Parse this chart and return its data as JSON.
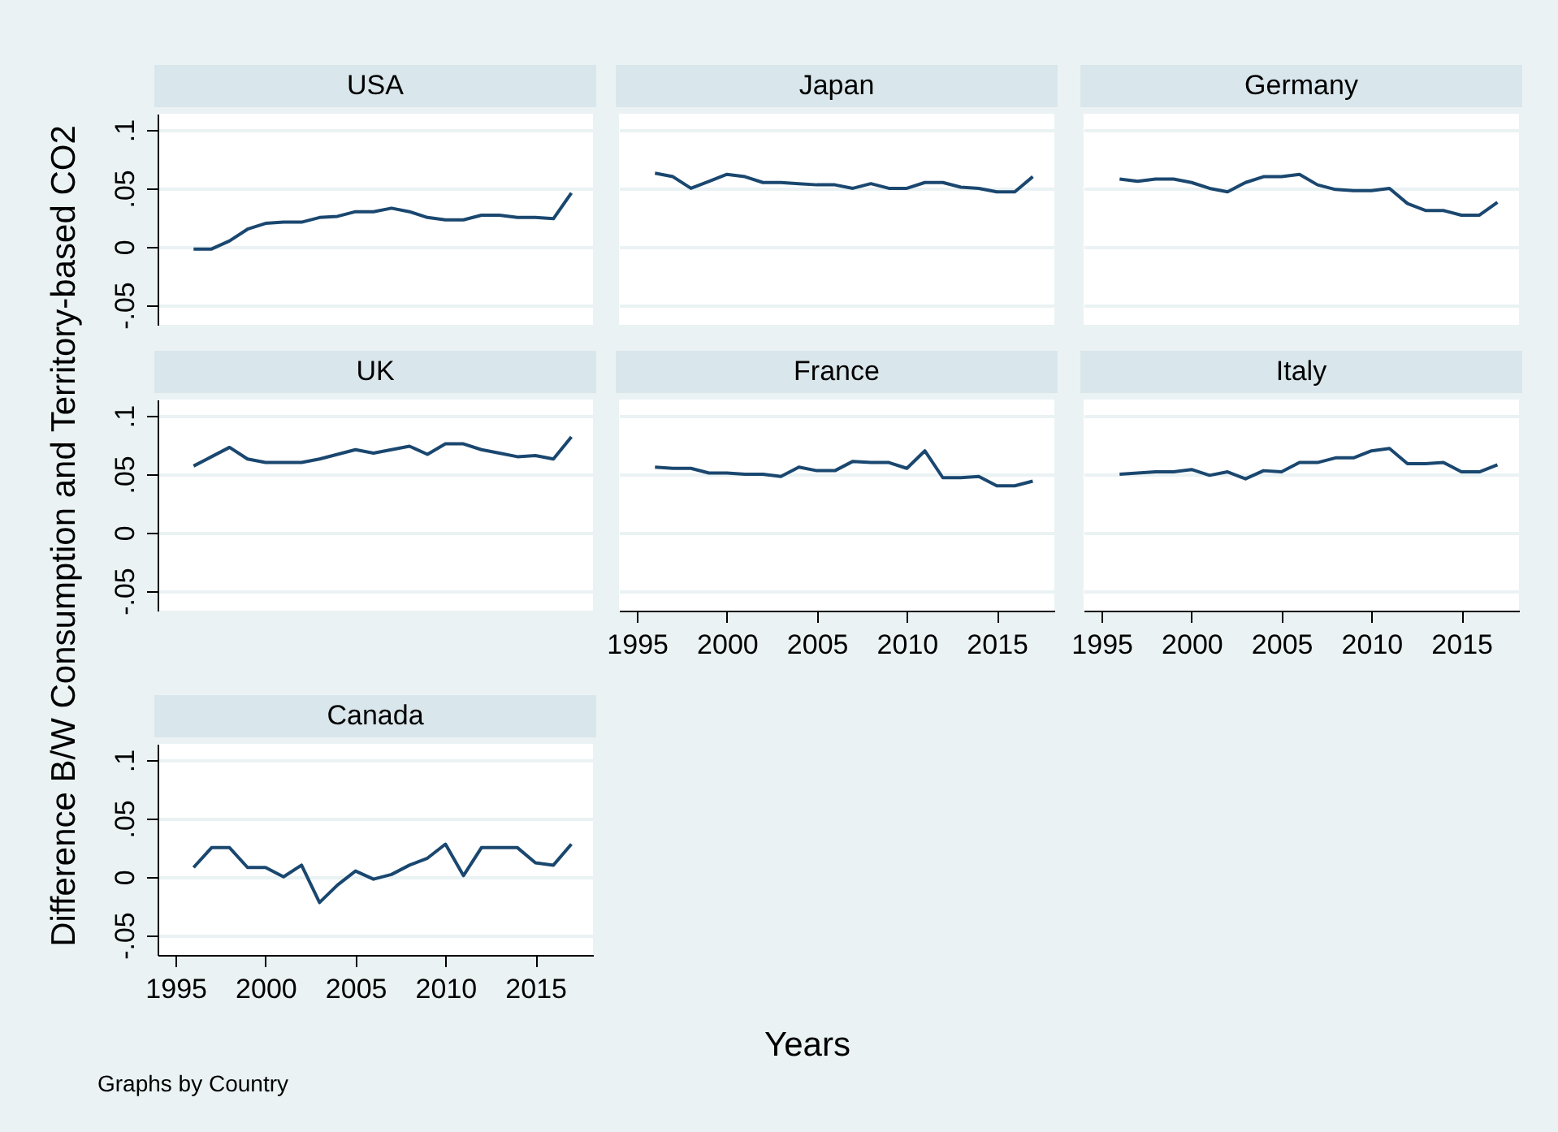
{
  "chart_data": [
    {
      "type": "line",
      "title": "USA",
      "ylabel": "Difference B/W Consumption and Territory-based CO2",
      "xlabel": "Years",
      "annotations": [
        "Graphs by Country"
      ],
      "color": "#1a476f",
      "grid": "y",
      "tick_labels": "y",
      "xlim": [
        1994,
        2018.2
      ],
      "ylim": [
        -0.067,
        0.114
      ],
      "yticks": [
        {
          "value": -0.05,
          "label": "-.05"
        },
        {
          "value": 0,
          "label": "0"
        },
        {
          "value": 0.05,
          "label": ".05"
        },
        {
          "value": 0.1,
          "label": ".1"
        }
      ],
      "x": [
        1996,
        1997,
        1998,
        1999,
        2000,
        2001,
        2002,
        2003,
        2004,
        2005,
        2006,
        2007,
        2008,
        2009,
        2010,
        2011,
        2012,
        2013,
        2014,
        2015,
        2016,
        2017
      ],
      "values": [
        -0.002,
        -0.002,
        0.005,
        0.015,
        0.02,
        0.021,
        0.021,
        0.025,
        0.026,
        0.03,
        0.03,
        0.033,
        0.03,
        0.025,
        0.023,
        0.023,
        0.027,
        0.027,
        0.025,
        0.025,
        0.024,
        0.046
      ]
    },
    {
      "type": "line",
      "title": "Japan",
      "color": "#1a476f",
      "grid": "y",
      "tick_labels": false,
      "xlim": [
        1994,
        2018.2
      ],
      "ylim": [
        -0.067,
        0.114
      ],
      "yticks": [
        -0.05,
        0,
        0.05,
        0.1
      ],
      "x": [
        1996,
        1997,
        1998,
        1999,
        2000,
        2001,
        2002,
        2003,
        2004,
        2005,
        2006,
        2007,
        2008,
        2009,
        2010,
        2011,
        2012,
        2013,
        2014,
        2015,
        2016,
        2017
      ],
      "values": [
        0.063,
        0.06,
        0.05,
        0.056,
        0.062,
        0.06,
        0.055,
        0.055,
        0.054,
        0.053,
        0.053,
        0.05,
        0.054,
        0.05,
        0.05,
        0.055,
        0.055,
        0.051,
        0.05,
        0.047,
        0.047,
        0.06
      ]
    },
    {
      "type": "line",
      "title": "Germany",
      "color": "#1a476f",
      "grid": "y",
      "tick_labels": false,
      "xlim": [
        1994,
        2018.2
      ],
      "ylim": [
        -0.067,
        0.114
      ],
      "yticks": [
        -0.05,
        0,
        0.05,
        0.1
      ],
      "x": [
        1996,
        1997,
        1998,
        1999,
        2000,
        2001,
        2002,
        2003,
        2004,
        2005,
        2006,
        2007,
        2008,
        2009,
        2010,
        2011,
        2012,
        2013,
        2014,
        2015,
        2016,
        2017
      ],
      "values": [
        0.058,
        0.056,
        0.058,
        0.058,
        0.055,
        0.05,
        0.047,
        0.055,
        0.06,
        0.06,
        0.062,
        0.053,
        0.049,
        0.048,
        0.048,
        0.05,
        0.037,
        0.031,
        0.031,
        0.027,
        0.027,
        0.038
      ]
    },
    {
      "type": "line",
      "title": "UK",
      "color": "#1a476f",
      "grid": "y",
      "tick_labels": "y",
      "xlim": [
        1994,
        2018.2
      ],
      "ylim": [
        -0.067,
        0.114
      ],
      "yticks": [
        {
          "value": -0.05,
          "label": "-.05"
        },
        {
          "value": 0,
          "label": "0"
        },
        {
          "value": 0.05,
          "label": ".05"
        },
        {
          "value": 0.1,
          "label": ".1"
        }
      ],
      "x": [
        1996,
        1997,
        1998,
        1999,
        2000,
        2001,
        2002,
        2003,
        2004,
        2005,
        2006,
        2007,
        2008,
        2009,
        2010,
        2011,
        2012,
        2013,
        2014,
        2015,
        2016,
        2017
      ],
      "values": [
        0.057,
        0.065,
        0.073,
        0.063,
        0.06,
        0.06,
        0.06,
        0.063,
        0.067,
        0.071,
        0.068,
        0.071,
        0.074,
        0.067,
        0.076,
        0.076,
        0.071,
        0.068,
        0.065,
        0.066,
        0.063,
        0.082
      ]
    },
    {
      "type": "line",
      "title": "France",
      "color": "#1a476f",
      "grid": "y",
      "tick_labels": "x",
      "xlim": [
        1994,
        2018.2
      ],
      "ylim": [
        -0.067,
        0.114
      ],
      "xticks": [
        1995,
        2000,
        2005,
        2010,
        2015
      ],
      "yticks": [
        -0.05,
        0,
        0.05,
        0.1
      ],
      "x": [
        1996,
        1997,
        1998,
        1999,
        2000,
        2001,
        2002,
        2003,
        2004,
        2005,
        2006,
        2007,
        2008,
        2009,
        2010,
        2011,
        2012,
        2013,
        2014,
        2015,
        2016,
        2017
      ],
      "values": [
        0.056,
        0.055,
        0.055,
        0.051,
        0.051,
        0.05,
        0.05,
        0.048,
        0.056,
        0.053,
        0.053,
        0.061,
        0.06,
        0.06,
        0.055,
        0.07,
        0.047,
        0.047,
        0.048,
        0.04,
        0.04,
        0.044
      ]
    },
    {
      "type": "line",
      "title": "Italy",
      "color": "#1a476f",
      "grid": "y",
      "tick_labels": "x",
      "xlim": [
        1994,
        2018.2
      ],
      "ylim": [
        -0.067,
        0.114
      ],
      "xticks": [
        1995,
        2000,
        2005,
        2010,
        2015
      ],
      "yticks": [
        -0.05,
        0,
        0.05,
        0.1
      ],
      "x": [
        1996,
        1997,
        1998,
        1999,
        2000,
        2001,
        2002,
        2003,
        2004,
        2005,
        2006,
        2007,
        2008,
        2009,
        2010,
        2011,
        2012,
        2013,
        2014,
        2015,
        2016,
        2017
      ],
      "values": [
        0.05,
        0.051,
        0.052,
        0.052,
        0.054,
        0.049,
        0.052,
        0.046,
        0.053,
        0.052,
        0.06,
        0.06,
        0.064,
        0.064,
        0.07,
        0.072,
        0.059,
        0.059,
        0.06,
        0.052,
        0.052,
        0.058
      ]
    },
    {
      "type": "line",
      "title": "Canada",
      "color": "#1a476f",
      "grid": "y",
      "xlim": [
        1994,
        2018.2
      ],
      "ylim": [
        -0.067,
        0.114
      ],
      "xticks": [
        1995,
        2000,
        2005,
        2010,
        2015
      ],
      "yticks": [
        {
          "value": -0.05,
          "label": "-.05"
        },
        {
          "value": 0,
          "label": "0"
        },
        {
          "value": 0.05,
          "label": ".05"
        },
        {
          "value": 0.1,
          "label": ".1"
        }
      ],
      "x": [
        1996,
        1997,
        1998,
        1999,
        2000,
        2001,
        2002,
        2003,
        2004,
        2005,
        2006,
        2007,
        2008,
        2009,
        2010,
        2011,
        2012,
        2013,
        2014,
        2015,
        2016,
        2017
      ],
      "values": [
        0.008,
        0.025,
        0.025,
        0.008,
        0.008,
        0,
        0.01,
        -0.022,
        -0.007,
        0.005,
        -0.002,
        0.002,
        0.01,
        0.016,
        0.028,
        0.001,
        0.025,
        0.025,
        0.025,
        0.012,
        0.01,
        0.028
      ]
    }
  ]
}
